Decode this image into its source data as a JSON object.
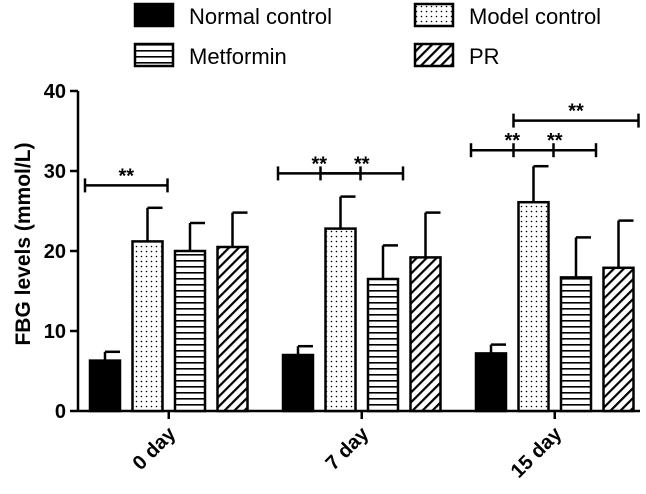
{
  "chart_data": {
    "type": "bar",
    "ylabel": "FBG levels (mmol/L)",
    "xlabel": "",
    "ylim": [
      0,
      40
    ],
    "yticks": [
      0,
      10,
      20,
      30,
      40
    ],
    "categories": [
      "0 day",
      "7 day",
      "15 day"
    ],
    "legend_position": "top",
    "series": [
      {
        "name": "Normal control",
        "pattern": "solid",
        "values": [
          6.3,
          7.0,
          7.2
        ],
        "errors": [
          1.1,
          1.1,
          1.1
        ]
      },
      {
        "name": "Model control",
        "pattern": "dots",
        "values": [
          21.2,
          22.8,
          26.1
        ],
        "errors": [
          4.2,
          4.0,
          4.5
        ]
      },
      {
        "name": "Metformin",
        "pattern": "horizontal",
        "values": [
          20.0,
          16.5,
          16.7
        ],
        "errors": [
          3.5,
          4.2,
          5.0
        ]
      },
      {
        "name": "PR",
        "pattern": "diagonal",
        "values": [
          20.5,
          19.2,
          17.9
        ],
        "errors": [
          4.3,
          5.6,
          5.9
        ]
      }
    ],
    "significance": [
      {
        "group": 0,
        "from": 0,
        "to": 1,
        "label": "**",
        "y": 28.2
      },
      {
        "group": 1,
        "from": 0,
        "to": 1,
        "label": "**",
        "y": 29.7
      },
      {
        "group": 1,
        "from": 1,
        "to": 2,
        "label": "**",
        "y": 29.7
      },
      {
        "group": 2,
        "from": 0,
        "to": 1,
        "label": "**",
        "y": 32.6
      },
      {
        "group": 2,
        "from": 1,
        "to": 2,
        "label": "**",
        "y": 32.6
      },
      {
        "group": 2,
        "from": 1,
        "to": 3,
        "label": "**",
        "y": 36.3
      }
    ],
    "colors": {
      "ink": "#000000",
      "fill": "#ffffff"
    }
  }
}
